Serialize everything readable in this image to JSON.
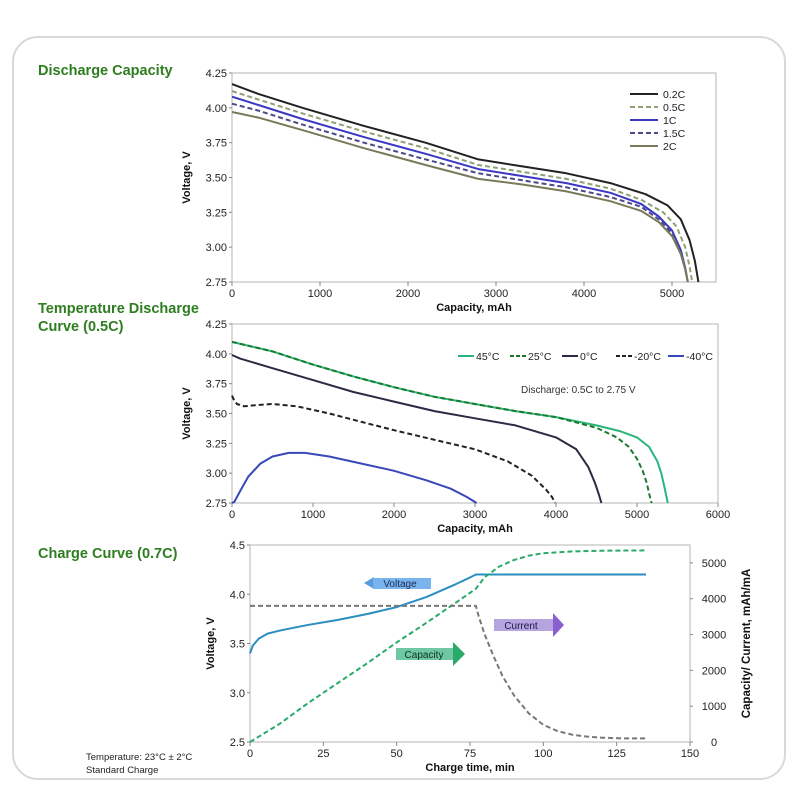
{
  "panels": {
    "discharge_title": "Discharge Capacity",
    "temperature_title": "Temperature Discharge\nCurve (0.5C)",
    "charge_title": "Charge Curve (0.7C)"
  },
  "notes": {
    "temperature_label": "Temperature:  23°C ±  2°C",
    "standard_charge": "Standard Charge"
  },
  "chart_data": [
    {
      "id": "discharge-capacity",
      "type": "line",
      "title": "Discharge Capacity",
      "xlabel": "Capacity, mAh",
      "ylabel": "Voltage, V",
      "xlim": [
        0,
        5500
      ],
      "ylim": [
        2.75,
        4.25
      ],
      "xticks": [
        0,
        1000,
        2000,
        3000,
        4000,
        5000
      ],
      "yticks": [
        "2.75",
        "3.00",
        "3.25",
        "3.50",
        "3.75",
        "4.00",
        "4.25"
      ],
      "legend_position": "top-right",
      "series": [
        {
          "name": "0.2C",
          "color": "#222222",
          "dash": "solid",
          "x": [
            0,
            300,
            800,
            1500,
            2200,
            2800,
            3300,
            3800,
            4300,
            4700,
            4950,
            5100,
            5200,
            5260,
            5300
          ],
          "y": [
            4.17,
            4.1,
            4.0,
            3.87,
            3.75,
            3.63,
            3.58,
            3.53,
            3.46,
            3.38,
            3.3,
            3.2,
            3.05,
            2.9,
            2.75
          ]
        },
        {
          "name": "0.5C",
          "color": "#8fa174",
          "dash": "dashed",
          "x": [
            0,
            300,
            800,
            1500,
            2200,
            2800,
            3300,
            3800,
            4300,
            4650,
            4900,
            5050,
            5150,
            5200,
            5230
          ],
          "y": [
            4.12,
            4.06,
            3.96,
            3.83,
            3.71,
            3.59,
            3.54,
            3.49,
            3.42,
            3.34,
            3.25,
            3.15,
            3.0,
            2.86,
            2.75
          ]
        },
        {
          "name": "1C",
          "color": "#3b38c4",
          "dash": "solid",
          "x": [
            0,
            300,
            800,
            1500,
            2200,
            2800,
            3300,
            3800,
            4300,
            4650,
            4850,
            5000,
            5100,
            5150,
            5180
          ],
          "y": [
            4.08,
            4.02,
            3.92,
            3.79,
            3.67,
            3.56,
            3.51,
            3.46,
            3.39,
            3.31,
            3.22,
            3.12,
            2.98,
            2.85,
            2.75
          ]
        },
        {
          "name": "1.5C",
          "color": "#4a4a8a",
          "dash": "dashed",
          "x": [
            0,
            300,
            800,
            1500,
            2200,
            2800,
            3300,
            3800,
            4300,
            4650,
            4850,
            5000,
            5100,
            5150,
            5180
          ],
          "y": [
            4.03,
            3.98,
            3.88,
            3.75,
            3.63,
            3.53,
            3.48,
            3.43,
            3.36,
            3.29,
            3.2,
            3.1,
            2.97,
            2.85,
            2.75
          ]
        },
        {
          "name": "2C",
          "color": "#7a7a5a",
          "dash": "solid",
          "x": [
            0,
            300,
            800,
            1500,
            2200,
            2800,
            3300,
            3800,
            4300,
            4650,
            4850,
            5000,
            5100,
            5150,
            5180
          ],
          "y": [
            3.97,
            3.93,
            3.84,
            3.71,
            3.59,
            3.49,
            3.45,
            3.4,
            3.33,
            3.26,
            3.18,
            3.08,
            2.95,
            2.84,
            2.75
          ]
        }
      ]
    },
    {
      "id": "temperature-discharge",
      "type": "line",
      "title": "Temperature Discharge Curve (0.5C)",
      "xlabel": "Capacity, mAh",
      "ylabel": "Voltage, V",
      "xlim": [
        0,
        6000
      ],
      "ylim": [
        2.75,
        4.25
      ],
      "xticks": [
        0,
        1000,
        2000,
        3000,
        4000,
        5000,
        6000
      ],
      "yticks": [
        "2.75",
        "3.00",
        "3.25",
        "3.50",
        "3.75",
        "4.00",
        "4.25"
      ],
      "annotation": "Discharge: 0.5C to 2.75 V",
      "legend_position": "top",
      "series": [
        {
          "name": "45°C",
          "color": "#2ab57d",
          "dash": "solid",
          "x": [
            0,
            500,
            1000,
            1500,
            2000,
            2500,
            3000,
            3500,
            4000,
            4500,
            4800,
            5000,
            5150,
            5250,
            5300,
            5340,
            5380
          ],
          "y": [
            4.1,
            4.02,
            3.91,
            3.81,
            3.72,
            3.64,
            3.58,
            3.52,
            3.47,
            3.4,
            3.35,
            3.3,
            3.22,
            3.1,
            3.0,
            2.88,
            2.75
          ]
        },
        {
          "name": "25°C",
          "color": "#1a7a2a",
          "dash": "dashed",
          "x": [
            0,
            500,
            1000,
            1500,
            2000,
            2500,
            3000,
            3500,
            4000,
            4500,
            4750,
            4900,
            5000,
            5070,
            5120,
            5150,
            5180
          ],
          "y": [
            4.1,
            4.02,
            3.91,
            3.81,
            3.72,
            3.64,
            3.58,
            3.52,
            3.47,
            3.38,
            3.3,
            3.22,
            3.12,
            3.02,
            2.92,
            2.83,
            2.75
          ]
        },
        {
          "name": "0°C",
          "color": "#2a2a44",
          "dash": "solid",
          "x": [
            0,
            100,
            500,
            1000,
            1500,
            2000,
            2500,
            3000,
            3500,
            4000,
            4250,
            4400,
            4480,
            4530,
            4560
          ],
          "y": [
            3.99,
            3.96,
            3.88,
            3.78,
            3.68,
            3.6,
            3.52,
            3.46,
            3.4,
            3.3,
            3.2,
            3.05,
            2.92,
            2.82,
            2.75
          ]
        },
        {
          "name": "-20°C",
          "color": "#222222",
          "dash": "dashed",
          "x": [
            0,
            20,
            60,
            150,
            300,
            500,
            800,
            1200,
            1600,
            2000,
            2500,
            3000,
            3400,
            3700,
            3880,
            3950,
            3990
          ],
          "y": [
            3.65,
            3.62,
            3.58,
            3.56,
            3.57,
            3.58,
            3.56,
            3.5,
            3.43,
            3.36,
            3.28,
            3.2,
            3.1,
            2.98,
            2.86,
            2.8,
            2.75
          ]
        },
        {
          "name": "-40°C",
          "color": "#3848b8",
          "dash": "solid",
          "x": [
            0,
            30,
            100,
            200,
            350,
            500,
            700,
            900,
            1200,
            1600,
            2000,
            2400,
            2700,
            2900,
            3020
          ],
          "y": [
            2.75,
            2.76,
            2.85,
            2.97,
            3.08,
            3.14,
            3.17,
            3.17,
            3.14,
            3.08,
            3.02,
            2.94,
            2.87,
            2.8,
            2.75
          ]
        }
      ]
    },
    {
      "id": "charge-curve",
      "type": "line",
      "title": "Charge Curve (0.7C)",
      "xlabel": "Charge time, min",
      "ylabel": "Voltage, V",
      "y2label": "Capacity/ Current, mAh/mA",
      "xlim": [
        0,
        150
      ],
      "ylim": [
        2.5,
        4.5
      ],
      "y2lim": [
        0,
        5500
      ],
      "xticks": [
        0,
        25,
        50,
        75,
        100,
        125,
        150
      ],
      "yticks": [
        "2.5",
        "3.0",
        "3.5",
        "4.0",
        "4.5"
      ],
      "y2ticks": [
        0,
        1000,
        2000,
        3000,
        4000,
        5000
      ],
      "labels": {
        "voltage": "Voltage",
        "capacity": "Capacity",
        "current": "Current"
      },
      "series": [
        {
          "name": "Voltage",
          "axis": "left",
          "color": "#2a8ec0",
          "dash": "solid",
          "x": [
            0,
            1,
            3,
            6,
            10,
            15,
            20,
            30,
            40,
            50,
            60,
            70,
            75,
            77,
            80,
            100,
            120,
            135
          ],
          "y": [
            3.4,
            3.48,
            3.55,
            3.6,
            3.63,
            3.66,
            3.69,
            3.74,
            3.8,
            3.87,
            3.97,
            4.1,
            4.17,
            4.2,
            4.2,
            4.2,
            4.2,
            4.2
          ]
        },
        {
          "name": "Capacity",
          "axis": "right",
          "color": "#2aaa6a",
          "dash": "dashed",
          "x": [
            0,
            10,
            20,
            30,
            40,
            50,
            60,
            70,
            77,
            80,
            85,
            90,
            95,
            100,
            110,
            120,
            135
          ],
          "y": [
            0,
            500,
            1100,
            1650,
            2200,
            2780,
            3320,
            3880,
            4280,
            4600,
            4900,
            5080,
            5200,
            5270,
            5320,
            5340,
            5350
          ]
        },
        {
          "name": "Current",
          "axis": "right",
          "color": "#777777",
          "dash": "dashed",
          "x": [
            0,
            77,
            78,
            80,
            83,
            86,
            90,
            95,
            100,
            105,
            110,
            115,
            120,
            127,
            135
          ],
          "y": [
            3800,
            3800,
            3500,
            3000,
            2400,
            1850,
            1300,
            800,
            480,
            300,
            200,
            150,
            120,
            100,
            100
          ]
        }
      ]
    }
  ]
}
